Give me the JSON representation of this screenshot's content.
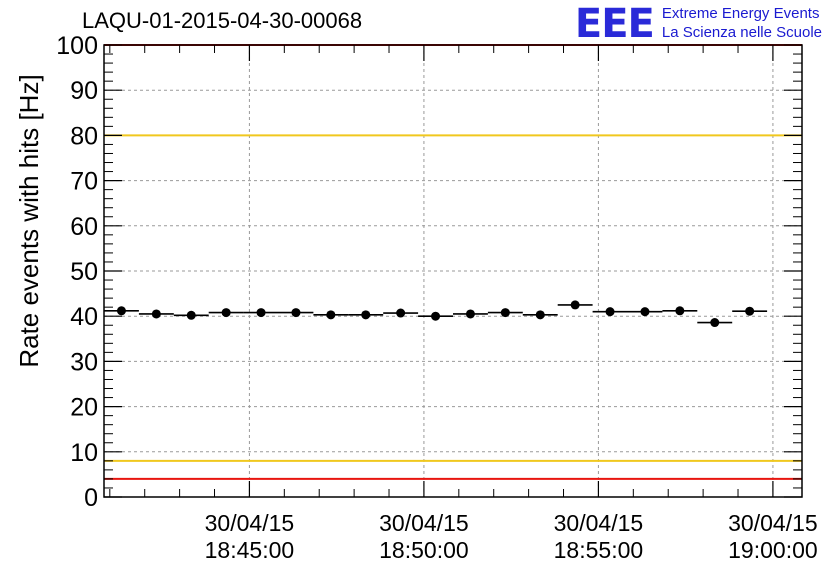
{
  "header": {
    "title": "LAQU-01-2015-04-30-00068",
    "logo": {
      "mark": "EEE",
      "line1": "Extreme Energy Events",
      "line2": "La Scienza nelle Scuole"
    }
  },
  "chart_data": {
    "type": "scatter",
    "title": "LAQU-01-2015-04-30-00068",
    "xlabel": "",
    "ylabel": "Rate events with hits [Hz]",
    "ylim": [
      0,
      100
    ],
    "xlim": [
      "2015-04-30 18:40:50",
      "2015-04-30 19:00:50"
    ],
    "y_ticks": [
      "0",
      "10",
      "20",
      "30",
      "40",
      "50",
      "60",
      "70",
      "80",
      "90",
      "100"
    ],
    "x_ticks": [
      {
        "date": "30/04/15",
        "time": "18:45:00",
        "t": "2015-04-30 18:45:00"
      },
      {
        "date": "30/04/15",
        "time": "18:50:00",
        "t": "2015-04-30 18:50:00"
      },
      {
        "date": "30/04/15",
        "time": "18:55:00",
        "t": "2015-04-30 18:55:00"
      },
      {
        "date": "30/04/15",
        "time": "19:00:00",
        "t": "2015-04-30 19:00:00"
      }
    ],
    "grid": true,
    "reference_lines": [
      {
        "value": 100,
        "color": "#e8150f"
      },
      {
        "value": 80,
        "color": "#f0c81e"
      },
      {
        "value": 8,
        "color": "#f0c81e"
      },
      {
        "value": 4,
        "color": "#e8150f"
      }
    ],
    "series": [
      {
        "color": "#000000",
        "points": [
          {
            "x_start": "2015-04-30 18:40:50",
            "x_end": "2015-04-30 18:41:50",
            "y": 41.2
          },
          {
            "x_start": "2015-04-30 18:41:50",
            "x_end": "2015-04-30 18:42:50",
            "y": 40.5
          },
          {
            "x_start": "2015-04-30 18:42:50",
            "x_end": "2015-04-30 18:43:50",
            "y": 40.2
          },
          {
            "x_start": "2015-04-30 18:43:50",
            "x_end": "2015-04-30 18:44:50",
            "y": 40.8
          },
          {
            "x_start": "2015-04-30 18:44:50",
            "x_end": "2015-04-30 18:45:50",
            "y": 40.8
          },
          {
            "x_start": "2015-04-30 18:45:50",
            "x_end": "2015-04-30 18:46:50",
            "y": 40.8
          },
          {
            "x_start": "2015-04-30 18:46:50",
            "x_end": "2015-04-30 18:47:50",
            "y": 40.3
          },
          {
            "x_start": "2015-04-30 18:47:50",
            "x_end": "2015-04-30 18:48:50",
            "y": 40.3
          },
          {
            "x_start": "2015-04-30 18:48:50",
            "x_end": "2015-04-30 18:49:50",
            "y": 40.7
          },
          {
            "x_start": "2015-04-30 18:49:50",
            "x_end": "2015-04-30 18:50:50",
            "y": 40.0
          },
          {
            "x_start": "2015-04-30 18:50:50",
            "x_end": "2015-04-30 18:51:50",
            "y": 40.5
          },
          {
            "x_start": "2015-04-30 18:51:50",
            "x_end": "2015-04-30 18:52:50",
            "y": 40.8
          },
          {
            "x_start": "2015-04-30 18:52:50",
            "x_end": "2015-04-30 18:53:50",
            "y": 40.3
          },
          {
            "x_start": "2015-04-30 18:53:50",
            "x_end": "2015-04-30 18:54:50",
            "y": 42.5
          },
          {
            "x_start": "2015-04-30 18:54:50",
            "x_end": "2015-04-30 18:55:50",
            "y": 41.0
          },
          {
            "x_start": "2015-04-30 18:55:50",
            "x_end": "2015-04-30 18:56:50",
            "y": 41.0
          },
          {
            "x_start": "2015-04-30 18:56:50",
            "x_end": "2015-04-30 18:57:50",
            "y": 41.2
          },
          {
            "x_start": "2015-04-30 18:57:50",
            "x_end": "2015-04-30 18:58:50",
            "y": 38.6
          },
          {
            "x_start": "2015-04-30 18:58:50",
            "x_end": "2015-04-30 18:59:50",
            "y": 41.1
          }
        ]
      }
    ]
  }
}
